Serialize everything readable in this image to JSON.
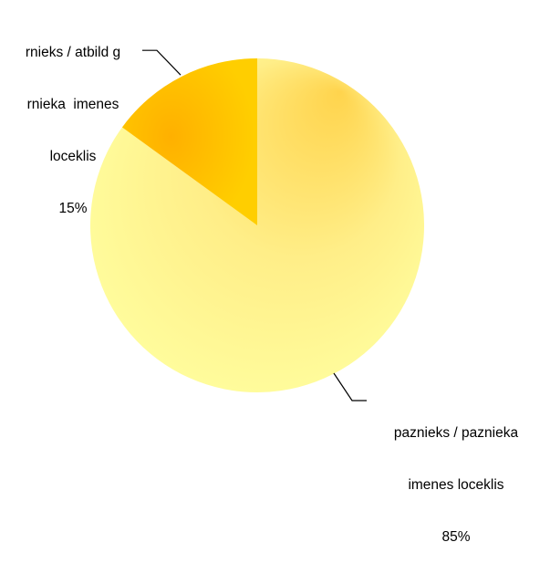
{
  "chart_data": {
    "type": "pie",
    "slices": [
      {
        "name_lines": [
          "paznieks / paznieka",
          "imenes loceklis"
        ],
        "value": 85,
        "value_label": "85%",
        "color": "#FFF27A"
      },
      {
        "name_lines": [
          "rnieks / atbild g",
          "rnieka  imenes",
          "loceklis"
        ],
        "value": 15,
        "value_label": "15%",
        "color": "#FFC000"
      }
    ],
    "start_angle_deg": 0,
    "direction": "clockwise",
    "leader_lines": true,
    "legend": "none"
  }
}
